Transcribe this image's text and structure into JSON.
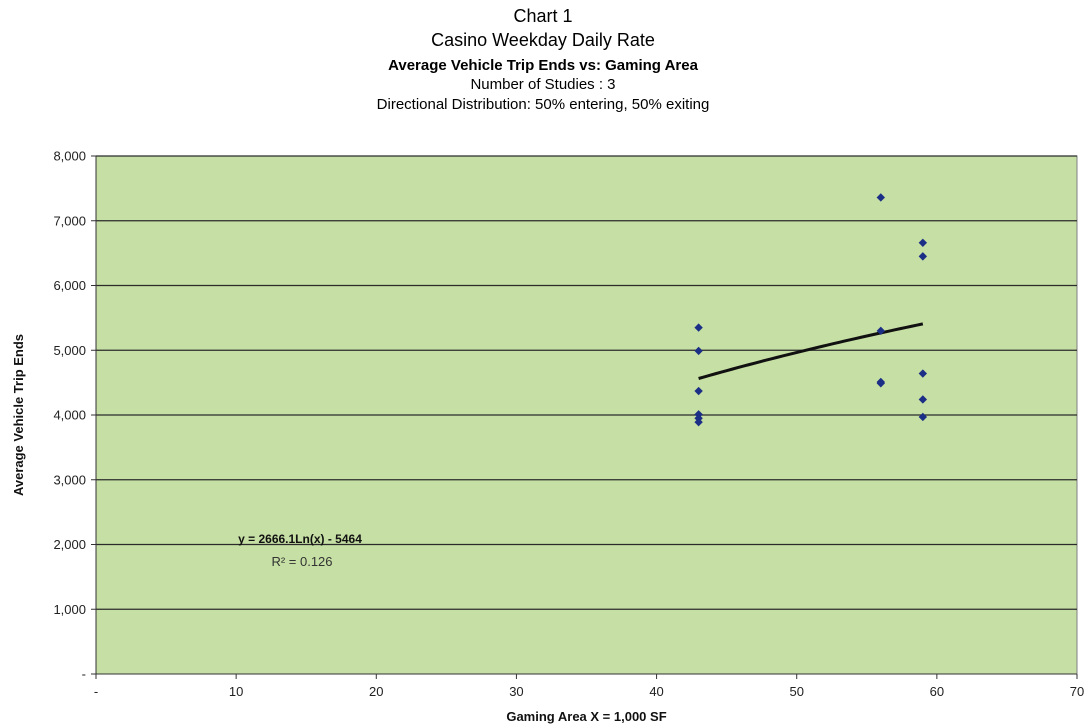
{
  "titles": {
    "line1": "Chart 1",
    "line2": "Casino Weekday Daily Rate",
    "line3": "Average Vehicle Trip Ends vs: Gaming Area",
    "line4": "Number of Studies :  3",
    "line5": "Directional Distribution:  50% entering, 50% exiting"
  },
  "chart_data": {
    "type": "scatter",
    "xlabel": "Gaming Area X = 1,000 SF",
    "ylabel": "Average Vehicle Trip Ends",
    "xlim": [
      0,
      70
    ],
    "ylim": [
      0,
      8000
    ],
    "x_ticks": [
      0,
      10,
      20,
      30,
      40,
      50,
      60,
      70
    ],
    "x_tick_labels": [
      "-",
      "10",
      "20",
      "30",
      "40",
      "50",
      "60",
      "70"
    ],
    "y_ticks": [
      0,
      1000,
      2000,
      3000,
      4000,
      5000,
      6000,
      7000,
      8000
    ],
    "y_tick_labels": [
      "-",
      "1,000",
      "2,000",
      "3,000",
      "4,000",
      "5,000",
      "6,000",
      "7,000",
      "8,000"
    ],
    "grid": "horizontal",
    "plot_background": "#c6dfa4",
    "marker_color": "#1c2f86",
    "points": [
      {
        "x": 43,
        "y": 5350
      },
      {
        "x": 43,
        "y": 4990
      },
      {
        "x": 43,
        "y": 4370
      },
      {
        "x": 43,
        "y": 4010
      },
      {
        "x": 43,
        "y": 3950
      },
      {
        "x": 43,
        "y": 3890
      },
      {
        "x": 56,
        "y": 7360
      },
      {
        "x": 56,
        "y": 5300
      },
      {
        "x": 56,
        "y": 4510
      },
      {
        "x": 56,
        "y": 4490
      },
      {
        "x": 59,
        "y": 6660
      },
      {
        "x": 59,
        "y": 6450
      },
      {
        "x": 59,
        "y": 4640
      },
      {
        "x": 59,
        "y": 4240
      },
      {
        "x": 59,
        "y": 3970
      }
    ],
    "trendline": {
      "type": "logarithmic",
      "a": 2666.1,
      "b": -5464,
      "x_range": [
        43,
        59
      ],
      "equation_label": "y = 2666.1Ln(x) - 5464",
      "r2_label": "R² = 0.126"
    }
  }
}
